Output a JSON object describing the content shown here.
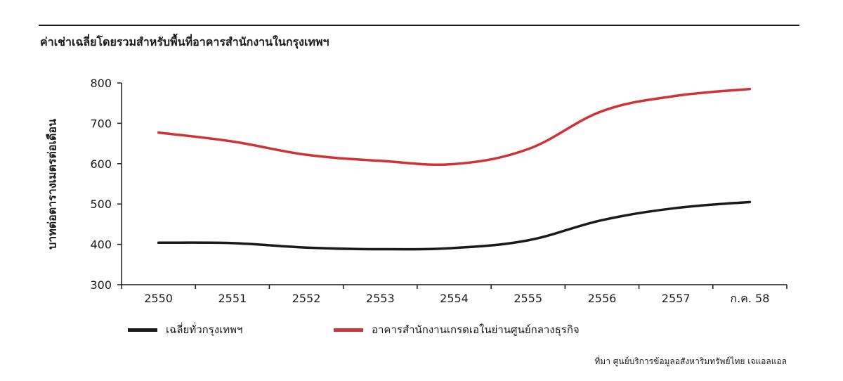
{
  "chart_data": {
    "type": "line",
    "title": "ค่าเช่าเฉลี่ยโดยรวมสำหรับพื้นที่อาคารสำนักงานในกรุงเทพฯ",
    "ylabel": "บาทต่อตารางเมตรต่อเดือน",
    "xlabel": "",
    "categories": [
      "2550",
      "2551",
      "2552",
      "2553",
      "2554",
      "2555",
      "2556",
      "2557",
      "ก.ค. 58"
    ],
    "ylim": [
      300,
      800
    ],
    "yticks": [
      300,
      400,
      500,
      600,
      700,
      800
    ],
    "series": [
      {
        "name": "เฉลี่ยทั่วกรุงเทพฯ",
        "color": "#1a1a1a",
        "values": [
          404,
          403,
          392,
          388,
          391,
          410,
          460,
          490,
          505
        ]
      },
      {
        "name": "อาคารสำนักงานเกรดเอในย่านศูนย์กลางธุรกิจ",
        "color": "#cf3336",
        "values": [
          677,
          655,
          622,
          607,
          599,
          636,
          730,
          768,
          785
        ]
      }
    ],
    "legend": "bottom",
    "grid": false
  },
  "source_note": "ที่มา ศูนย์บริการข้อมูลอสังหาริมทรัพย์ไทย เจแอลแอล"
}
